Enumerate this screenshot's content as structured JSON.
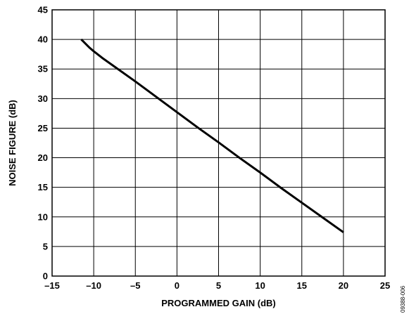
{
  "chart_data": {
    "type": "line",
    "xlabel": "PROGRAMMED GAIN (dB)",
    "ylabel": "NOISE FIGURE (dB)",
    "xlim": [
      -15,
      25
    ],
    "ylim": [
      0,
      45
    ],
    "xticks": [
      -15,
      -10,
      -5,
      0,
      5,
      10,
      15,
      20,
      25
    ],
    "xtick_labels": [
      "–15",
      "–10",
      "–5",
      "0",
      "5",
      "10",
      "15",
      "20",
      "25"
    ],
    "yticks": [
      0,
      5,
      10,
      15,
      20,
      25,
      30,
      35,
      40,
      45
    ],
    "ytick_labels": [
      "0",
      "5",
      "10",
      "15",
      "20",
      "25",
      "30",
      "35",
      "40",
      "45"
    ],
    "grid": true,
    "series": [
      {
        "x": [
          -11.5,
          -10.5,
          -10,
          -9,
          -7.5,
          -5,
          -2.5,
          0,
          2.5,
          5,
          7.5,
          10,
          12.5,
          15,
          17.5,
          20
        ],
        "y": [
          40,
          38.6,
          38,
          36.9,
          35.4,
          32.9,
          30.3,
          27.7,
          25.1,
          22.6,
          20.0,
          17.5,
          14.9,
          12.4,
          9.9,
          7.4
        ]
      }
    ],
    "line_color": "#000000"
  },
  "figure_id": "09388-006"
}
